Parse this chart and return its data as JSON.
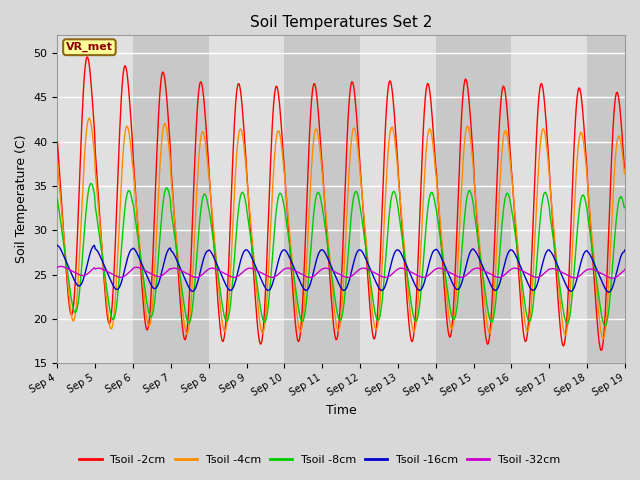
{
  "title": "Soil Temperatures Set 2",
  "xlabel": "Time",
  "ylabel": "Soil Temperature (C)",
  "ylim": [
    15,
    52
  ],
  "yticks": [
    15,
    20,
    25,
    30,
    35,
    40,
    45,
    50
  ],
  "fig_bg_color": "#d8d8d8",
  "plot_bg_color": "#d8d8d8",
  "annotation_text": "VR_met",
  "annotation_box_color": "#ffff99",
  "annotation_text_color": "#8b0000",
  "line_colors": {
    "Tsoil -2cm": "#ff0000",
    "Tsoil -4cm": "#ff8c00",
    "Tsoil -8cm": "#00cc00",
    "Tsoil -16cm": "#0000cd",
    "Tsoil -32cm": "#cc00cc"
  },
  "series_labels": [
    "Tsoil -2cm",
    "Tsoil -4cm",
    "Tsoil -8cm",
    "Tsoil -16cm",
    "Tsoil -32cm"
  ],
  "x_tick_labels": [
    "Sep 4",
    "Sep 5",
    "Sep 6",
    "Sep 7",
    "Sep 8",
    "Sep 9",
    "Sep 10",
    "Sep 11",
    "Sep 12",
    "Sep 13",
    "Sep 14",
    "Sep 15",
    "Sep 16",
    "Sep 17",
    "Sep 18",
    "Sep 19"
  ],
  "band_light": "#c8c8c8",
  "band_dark": "#e0e0e0",
  "grid_color": "#ffffff"
}
